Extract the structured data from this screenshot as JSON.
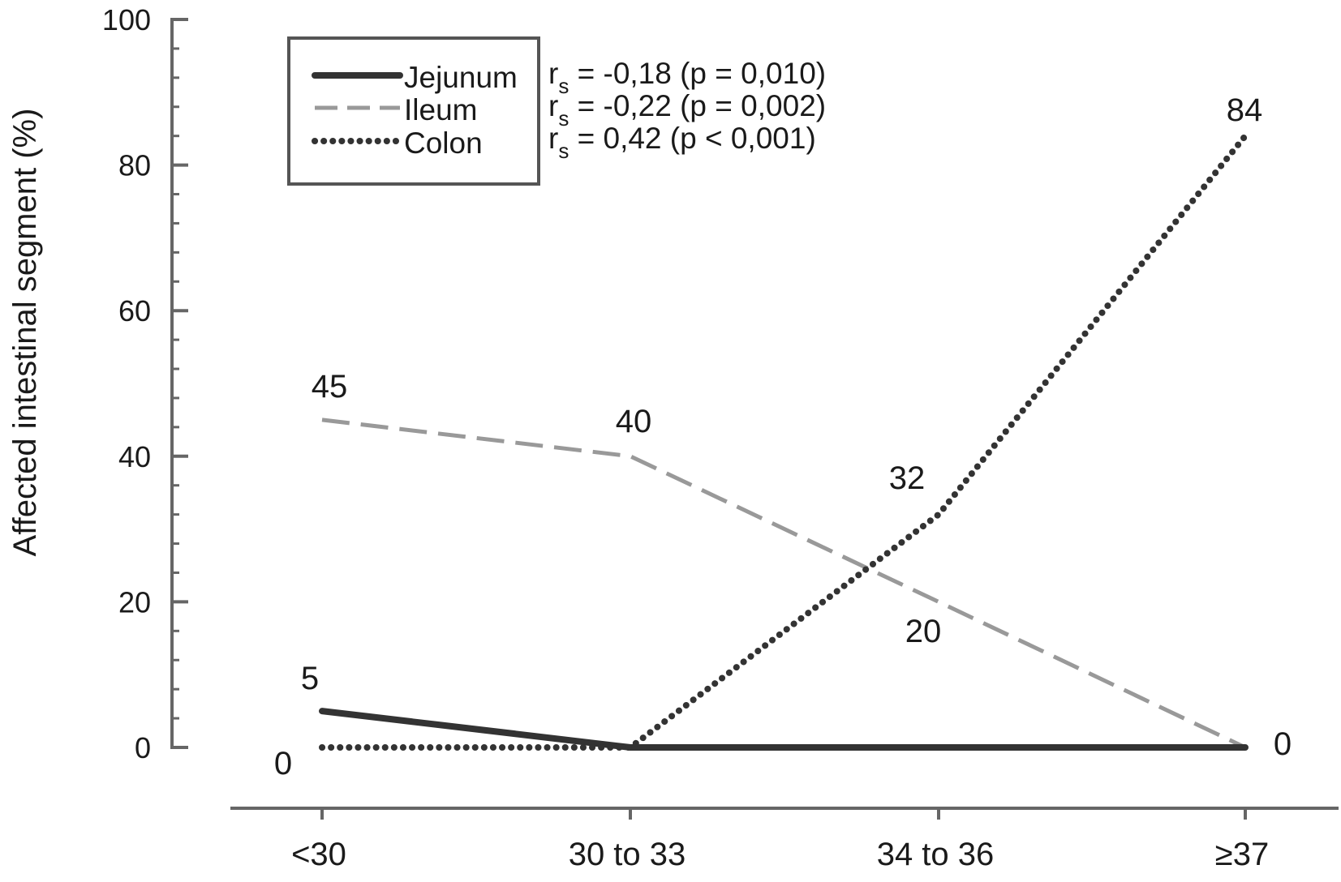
{
  "chart_data": {
    "type": "line",
    "title": "",
    "xlabel": "",
    "ylabel": "Affected intestinal segment (%)",
    "categories": [
      "<30",
      "30 to 33",
      "34 to 36",
      "≥37"
    ],
    "ylim": [
      0,
      100
    ],
    "yticks": [
      "0",
      "20",
      "40",
      "60",
      "80",
      "100"
    ],
    "grid": false,
    "legend_position": "top-left",
    "series": [
      {
        "name": "Jejunum",
        "style": "solid",
        "color": "#333333",
        "values": [
          5,
          0,
          0,
          0
        ],
        "stat_prefix": "r",
        "stat_sub": "s",
        "stat_rest": " = -0,18 (p = 0,010)"
      },
      {
        "name": "Ileum",
        "style": "dashed",
        "color": "#999999",
        "values": [
          45,
          40,
          20,
          0
        ],
        "stat_prefix": "r",
        "stat_sub": "s",
        "stat_rest": " = -0,22 (p = 0,002)"
      },
      {
        "name": "Colon",
        "style": "dotted",
        "color": "#333333",
        "values": [
          0,
          0,
          32,
          84
        ],
        "stat_prefix": "r",
        "stat_sub": "s",
        "stat_rest": " = 0,42 (p < 0,001)"
      }
    ],
    "annotations": [
      {
        "text": "45"
      },
      {
        "text": "40"
      },
      {
        "text": "32"
      },
      {
        "text": "20"
      },
      {
        "text": "84"
      },
      {
        "text": "5"
      },
      {
        "text": "0"
      },
      {
        "text": "0"
      }
    ]
  }
}
